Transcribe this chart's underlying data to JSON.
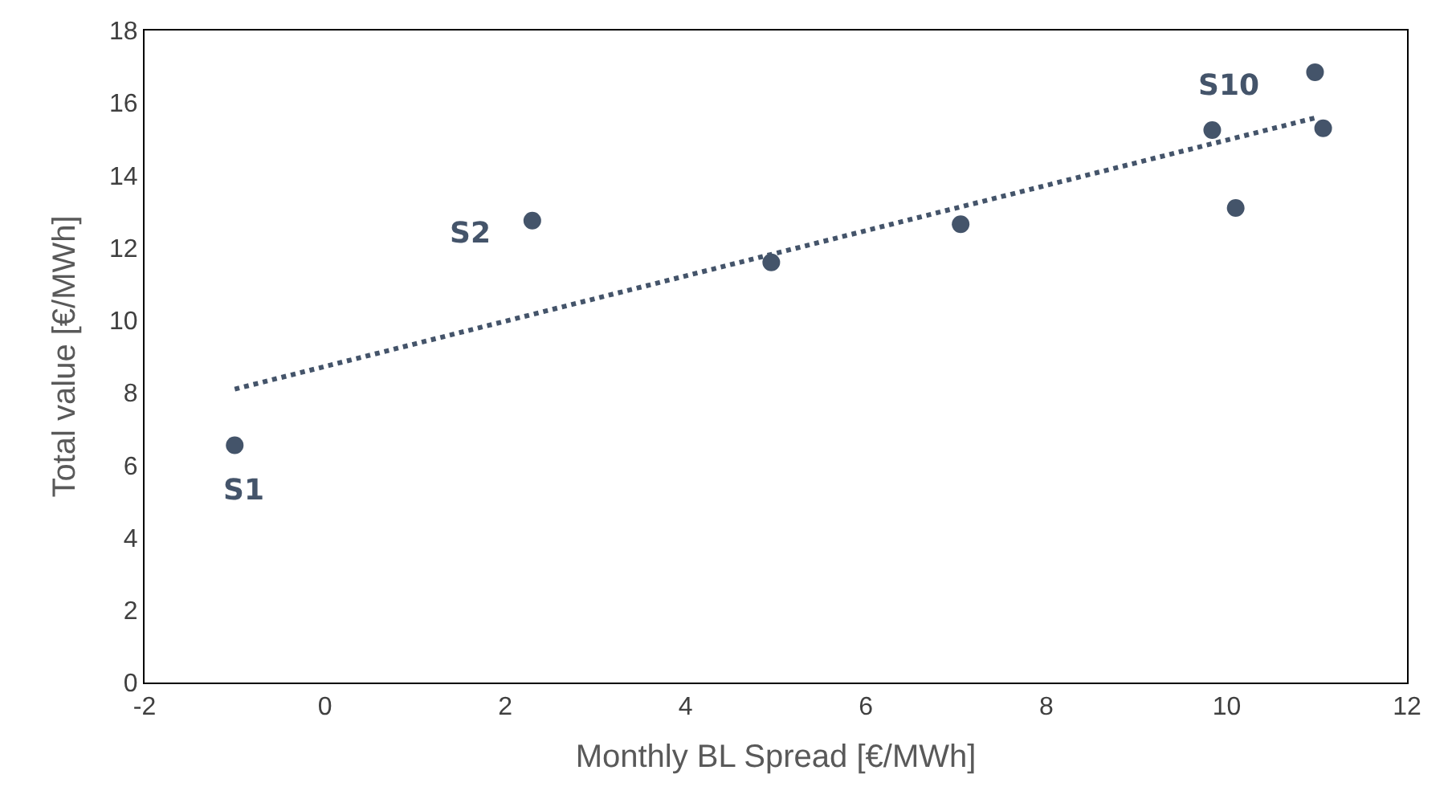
{
  "chart_data": {
    "type": "scatter",
    "xlabel": "Monthly BL Spread [€/MWh]",
    "ylabel": "Total value [€/MWh]",
    "x": [
      -1.0,
      2.3,
      4.95,
      7.05,
      9.84,
      10.1,
      10.98,
      11.07
    ],
    "series": [
      {
        "color": "#44546a",
        "marker": "circle",
        "values": [
          6.55,
          12.75,
          11.6,
          12.65,
          15.25,
          13.1,
          16.85,
          15.3
        ]
      },
      {
        "type": "line",
        "color": "#44546a",
        "line_style": "dotted",
        "x": [
          -1.0,
          11.0
        ],
        "values": [
          8.1,
          15.6
        ]
      }
    ],
    "annotations": [
      {
        "text": "S1",
        "x": -1.0,
        "y": 6.55
      },
      {
        "text": "S2",
        "x": 2.3,
        "y": 12.75
      },
      {
        "text": "S10",
        "x": 9.84,
        "y": 15.25
      }
    ],
    "xlim": [
      -2,
      12
    ],
    "xticks": [
      -2,
      0,
      2,
      4,
      6,
      8,
      10,
      12
    ],
    "ylim": [
      0,
      18
    ],
    "yticks": [
      0,
      2,
      4,
      6,
      8,
      10,
      12,
      14,
      16,
      18
    ]
  }
}
